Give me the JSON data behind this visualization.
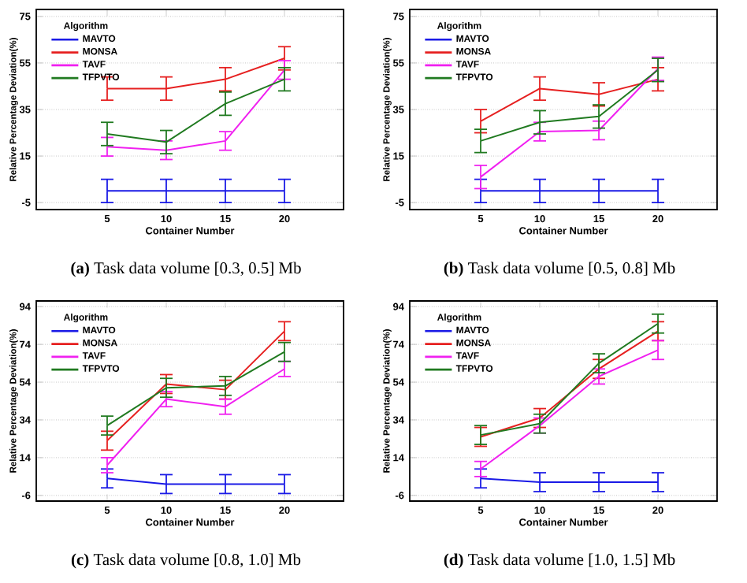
{
  "chart_data": [
    {
      "type": "line",
      "title": "**(a)** Task data volume [0.3, 0.5] Mb",
      "xlabel": "Container Number",
      "ylabel": "Relative Percentage Deviation(%)",
      "legend_title": "Algorithm",
      "legend": "top left",
      "grid": "y",
      "x": [
        5,
        10,
        15,
        20
      ],
      "xlim": [
        -1,
        25
      ],
      "xticks": [
        5,
        10,
        15,
        20
      ],
      "ylim": [
        -8,
        78
      ],
      "yticks": [
        -5,
        15,
        35,
        55,
        75
      ],
      "series": [
        {
          "name": "MAVTO",
          "color": "#1a1ae6",
          "values": [
            0,
            0,
            0,
            0
          ],
          "errors": [
            5,
            5,
            5,
            5
          ]
        },
        {
          "name": "MONSA",
          "color": "#e62020",
          "values": [
            44,
            44,
            48,
            57
          ],
          "errors": [
            5,
            5,
            5,
            5
          ]
        },
        {
          "name": "TAVF",
          "color": "#f020f0",
          "values": [
            19,
            17.5,
            21.5,
            52
          ],
          "errors": [
            4,
            4,
            4,
            4
          ]
        },
        {
          "name": "TFPVTO",
          "color": "#207a20",
          "values": [
            24.5,
            21,
            37.5,
            48
          ],
          "errors": [
            5,
            5,
            5,
            5
          ]
        }
      ]
    },
    {
      "type": "line",
      "title": "**(b)** Task data volume [0.5, 0.8] Mb",
      "xlabel": "Container Number",
      "ylabel": "Relative Percentage Deviation(%)",
      "legend_title": "Algorithm",
      "legend": "top left",
      "grid": "y",
      "x": [
        5,
        10,
        15,
        20
      ],
      "xlim": [
        -1,
        25
      ],
      "xticks": [
        5,
        10,
        15,
        20
      ],
      "ylim": [
        -8,
        78
      ],
      "yticks": [
        -5,
        15,
        35,
        55,
        75
      ],
      "series": [
        {
          "name": "MAVTO",
          "color": "#1a1ae6",
          "values": [
            0,
            0,
            0,
            0
          ],
          "errors": [
            5,
            5,
            5,
            5
          ]
        },
        {
          "name": "MONSA",
          "color": "#e62020",
          "values": [
            30,
            44,
            41.5,
            48
          ],
          "errors": [
            5,
            5,
            5,
            5
          ]
        },
        {
          "name": "TAVF",
          "color": "#f020f0",
          "values": [
            6,
            25.5,
            26,
            52.5
          ],
          "errors": [
            5,
            4,
            4,
            5
          ]
        },
        {
          "name": "TFPVTO",
          "color": "#207a20",
          "values": [
            21.5,
            29.5,
            32,
            52
          ],
          "errors": [
            5,
            5,
            5,
            5
          ]
        }
      ]
    },
    {
      "type": "line",
      "title": "**(c)** Task data volume [0.8, 1.0] Mb",
      "xlabel": "Container Number",
      "ylabel": "Relative Percentage Deviation(%)",
      "legend_title": "Algorithm",
      "legend": "top left",
      "grid": "y",
      "x": [
        5,
        10,
        15,
        20
      ],
      "xlim": [
        -1,
        25
      ],
      "xticks": [
        5,
        10,
        15,
        20
      ],
      "ylim": [
        -9,
        97
      ],
      "yticks": [
        -6,
        14,
        34,
        54,
        74,
        94
      ],
      "series": [
        {
          "name": "MAVTO",
          "color": "#1a1ae6",
          "values": [
            3,
            0,
            0,
            0
          ],
          "errors": [
            5,
            5,
            5,
            5
          ]
        },
        {
          "name": "MONSA",
          "color": "#e62020",
          "values": [
            23,
            53,
            50,
            81
          ],
          "errors": [
            5,
            5,
            5,
            5
          ]
        },
        {
          "name": "TAVF",
          "color": "#f020f0",
          "values": [
            10,
            45,
            41,
            61
          ],
          "errors": [
            4,
            4,
            4,
            4
          ]
        },
        {
          "name": "TFPVTO",
          "color": "#207a20",
          "values": [
            31,
            51,
            52,
            70
          ],
          "errors": [
            5,
            5,
            5,
            5
          ]
        }
      ]
    },
    {
      "type": "line",
      "title": "**(d)** Task data volume [1.0, 1.5] Mb",
      "xlabel": "Container Number",
      "ylabel": "Relative Percentage Deviation(%)",
      "legend_title": "Algorithm",
      "legend": "top left",
      "grid": "y",
      "x": [
        5,
        10,
        15,
        20
      ],
      "xlim": [
        -1,
        25
      ],
      "xticks": [
        5,
        10,
        15,
        20
      ],
      "ylim": [
        -9,
        97
      ],
      "yticks": [
        -6,
        14,
        34,
        54,
        74,
        94
      ],
      "series": [
        {
          "name": "MAVTO",
          "color": "#1a1ae6",
          "values": [
            3,
            1,
            1,
            1
          ],
          "errors": [
            5,
            5,
            5,
            5
          ]
        },
        {
          "name": "MONSA",
          "color": "#e62020",
          "values": [
            25,
            35,
            61,
            81
          ],
          "errors": [
            5,
            5,
            5,
            5
          ]
        },
        {
          "name": "TAVF",
          "color": "#f020f0",
          "values": [
            8,
            31,
            57,
            71
          ],
          "errors": [
            4,
            4,
            4,
            5
          ]
        },
        {
          "name": "TFPVTO",
          "color": "#207a20",
          "values": [
            26,
            32,
            64,
            85
          ],
          "errors": [
            5,
            5,
            5,
            5
          ]
        }
      ]
    }
  ]
}
